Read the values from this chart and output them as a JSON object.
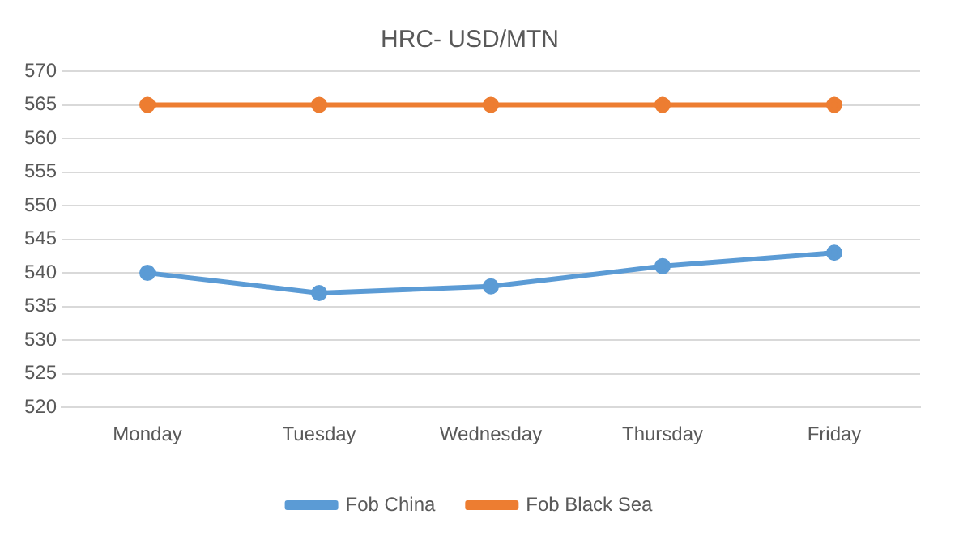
{
  "chart_data": {
    "type": "line",
    "title": "HRC- USD/MTN",
    "categories": [
      "Monday",
      "Tuesday",
      "Wednesday",
      "Thursday",
      "Friday"
    ],
    "series": [
      {
        "name": "Fob China",
        "color": "#5b9bd5",
        "values": [
          540,
          537,
          538,
          541,
          543
        ]
      },
      {
        "name": "Fob Black Sea",
        "color": "#ed7d31",
        "values": [
          565,
          565,
          565,
          565,
          565
        ]
      }
    ],
    "ylim": [
      520,
      570
    ],
    "yticks": [
      520,
      525,
      530,
      535,
      540,
      545,
      550,
      555,
      560,
      565,
      570
    ],
    "grid": "y",
    "legend": "bottom",
    "marker": "circle",
    "line_style": "solid"
  }
}
